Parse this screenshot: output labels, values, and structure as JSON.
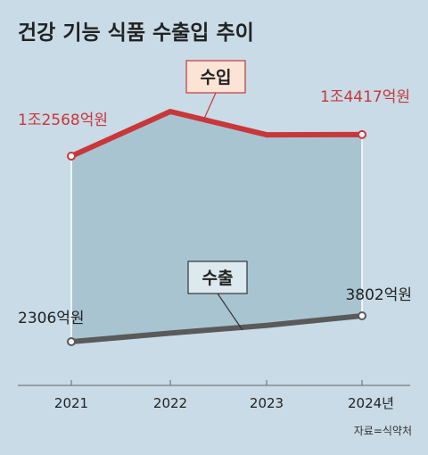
{
  "title": "건강 기능 식품 수출입 추이",
  "source": "자료=식약처",
  "colors": {
    "background": "#c8dbe6",
    "import_line": "#c8373a",
    "export_line": "#5a5a5a",
    "area_fill": "#a9c4d1",
    "import_label_bg": "#fbe3d6",
    "export_label_bg": "#dce9ee",
    "axis": "#666666"
  },
  "chart_data": {
    "type": "line",
    "categories": [
      "2021",
      "2022",
      "2023",
      "2024년"
    ],
    "ylabel": "",
    "xlabel": "",
    "grid": false,
    "series": [
      {
        "name": "수입",
        "values": [
          12568,
          16400,
          14400,
          14417
        ],
        "start_label": "1조2568억원",
        "end_label": "1조4417억원"
      },
      {
        "name": "수출",
        "values": [
          2306,
          2800,
          3250,
          3802
        ],
        "start_label": "2306억원",
        "end_label": "3802억원"
      }
    ]
  }
}
